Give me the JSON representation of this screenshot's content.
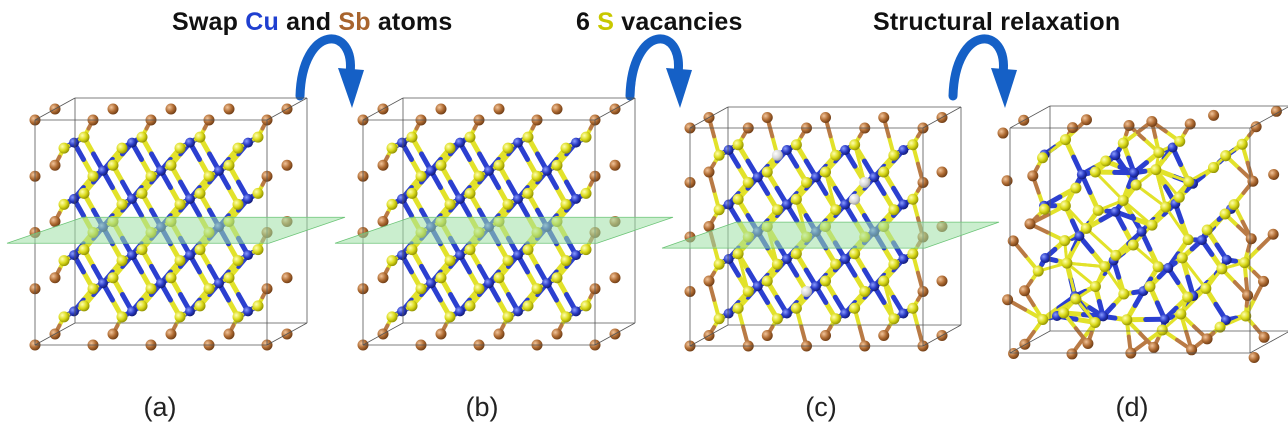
{
  "steps": {
    "swap": {
      "part1": "Swap ",
      "cu": "Cu",
      "part2": " and ",
      "sb": "Sb",
      "part3": " atoms"
    },
    "vacancies": {
      "part1": "6 ",
      "s": "S",
      "part2": " vacancies"
    },
    "relax": {
      "text": "Structural relaxation"
    }
  },
  "panels": [
    {
      "label": "(a)"
    },
    {
      "label": "(b)"
    },
    {
      "label": "(c)"
    },
    {
      "label": "(d)"
    }
  ],
  "colors": {
    "cu": "#2233bb",
    "sb": "#a8642d",
    "s": "#c8c800",
    "bond_s": "#e2e22a",
    "bond_cu": "#2b3fd0",
    "bond_sb": "#b97a45",
    "vacancy": "#d6d6d6",
    "plane": "#9fe0a6",
    "arrow": "#1560c6",
    "cell": "#555555"
  },
  "icons": {
    "arrow": "curved-arrow-icon"
  }
}
